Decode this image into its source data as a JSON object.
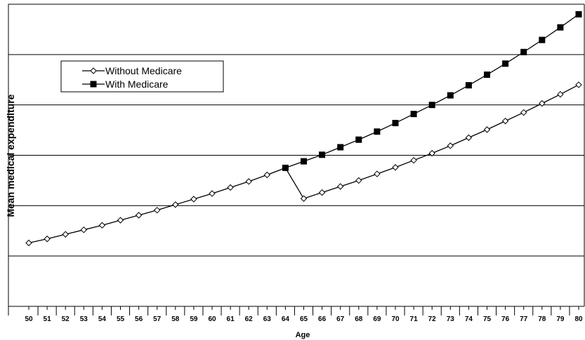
{
  "chart_data": {
    "type": "line",
    "xlabel": "Age",
    "ylabel": "Mean medical expenditure",
    "x": [
      50,
      51,
      52,
      53,
      54,
      55,
      56,
      57,
      58,
      59,
      60,
      61,
      62,
      63,
      64,
      65,
      66,
      67,
      68,
      69,
      70,
      71,
      72,
      73,
      74,
      75,
      76,
      77,
      78,
      79,
      80
    ],
    "ylim": [
      0,
      6
    ],
    "y_tick_labels_shown": false,
    "grid": "horizontal",
    "legend_position": "top-left",
    "series": [
      {
        "name": "Without Medicare",
        "marker": "diamond-open",
        "color": "#000000",
        "values": [
          1.26,
          1.34,
          1.43,
          1.52,
          1.61,
          1.71,
          1.81,
          1.91,
          2.02,
          2.13,
          2.24,
          2.36,
          2.48,
          2.61,
          2.75,
          2.14,
          2.26,
          2.38,
          2.5,
          2.63,
          2.76,
          2.9,
          3.04,
          3.19,
          3.35,
          3.51,
          3.68,
          3.85,
          4.03,
          4.21,
          4.4
        ]
      },
      {
        "name": "With Medicare",
        "marker": "square-filled",
        "color": "#000000",
        "values": [
          null,
          null,
          null,
          null,
          null,
          null,
          null,
          null,
          null,
          null,
          null,
          null,
          null,
          null,
          2.75,
          2.88,
          3.01,
          3.16,
          3.31,
          3.47,
          3.64,
          3.82,
          4.0,
          4.19,
          4.39,
          4.6,
          4.82,
          5.05,
          5.29,
          5.54,
          5.8
        ]
      }
    ]
  }
}
